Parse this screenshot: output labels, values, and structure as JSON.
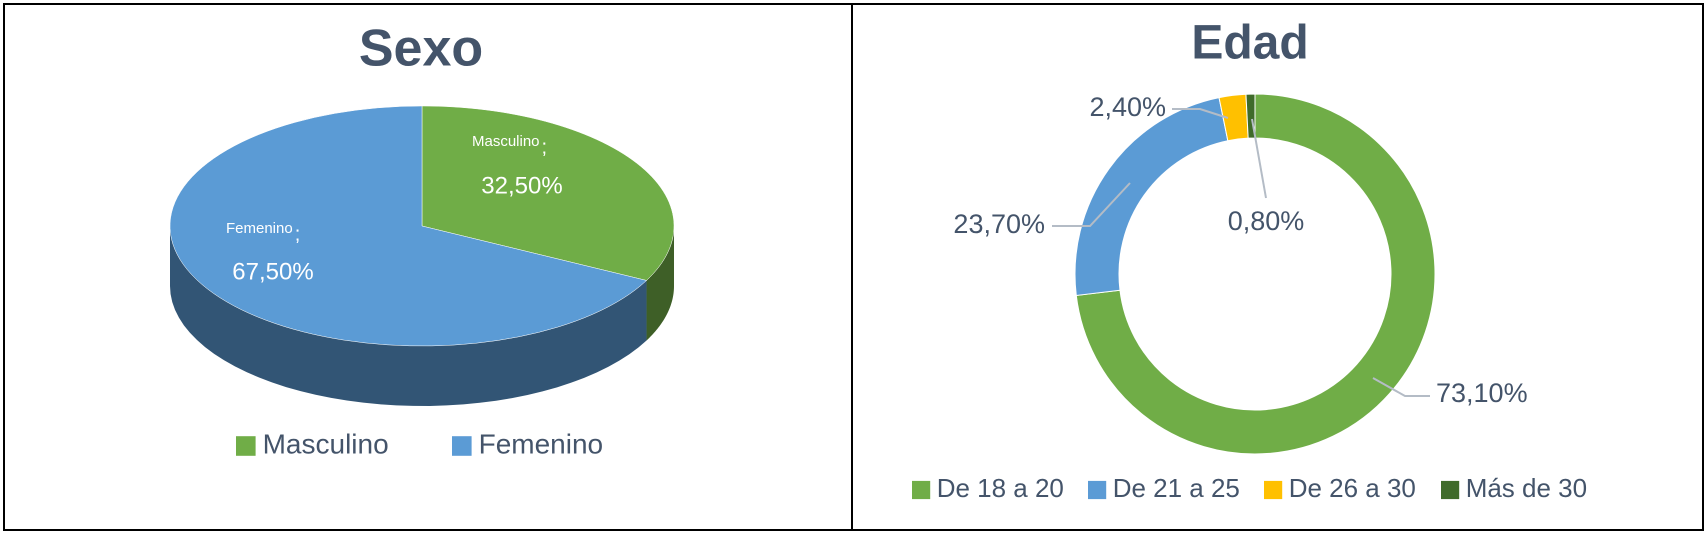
{
  "chart_data": [
    {
      "type": "pie3d",
      "title": "Sexo",
      "categories": [
        "Masculino",
        "Femenino"
      ],
      "values": [
        32.5,
        67.5
      ],
      "value_labels": [
        "32,50%",
        "67,50%"
      ],
      "label_separator": ";",
      "colors": [
        "#70ad47",
        "#5b9bd5"
      ],
      "legend": "bottom"
    },
    {
      "type": "donut",
      "title": "Edad",
      "categories": [
        "De 18 a 20",
        "De 21 a 25",
        "De 26 a 30",
        "Más de 30"
      ],
      "values": [
        73.1,
        23.7,
        2.4,
        0.8
      ],
      "value_labels": [
        "73,10%",
        "23,70%",
        "2,40%",
        "0,80%"
      ],
      "colors": [
        "#70ad47",
        "#5b9bd5",
        "#ffc000",
        "#3f6b2a"
      ],
      "legend": "bottom"
    }
  ]
}
